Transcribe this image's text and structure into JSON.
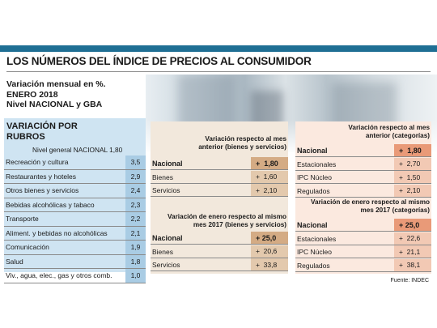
{
  "title": "LOS NÚMEROS DEL ÍNDICE DE PRECIOS AL CONSUMIDOR",
  "subtitle": [
    "Variación mensual en %.",
    "ENERO 2018",
    "Nivel NACIONAL y GBA"
  ],
  "source": "Fuente: INDEC",
  "colors": {
    "accent_bar": "#1f6f94",
    "left_panel": "#cfe4f2",
    "left_values": "#a9cce4",
    "mid_values": "#e3c9ad",
    "right_values": "#f2c9b4"
  },
  "chart_data": [
    {
      "type": "table",
      "title": "VARIACIÓN POR RUBROS",
      "subtitle": "Nivel general NACIONAL 1,80",
      "rows": [
        {
          "label": "Recreación y cultura",
          "value": "3,5"
        },
        {
          "label": "Restaurantes y hoteles",
          "value": "2,9"
        },
        {
          "label": "Otros bienes y servicios",
          "value": "2,4"
        },
        {
          "label": "Bebidas alcohólicas y tabaco",
          "value": "2,3"
        },
        {
          "label": "Transporte",
          "value": "2,2"
        },
        {
          "label": "Aliment. y bebidas no alcohólicas",
          "value": "2,1"
        },
        {
          "label": "Comunicación",
          "value": "1,9"
        },
        {
          "label": "Salud",
          "value": "1,8"
        },
        {
          "label": "Viv., agua, elec., gas y otros comb.",
          "value": "1,0"
        }
      ]
    },
    {
      "type": "table",
      "title": "Variación respecto al mes anterior (bienes y servicios)",
      "rows": [
        {
          "label": "Nacional",
          "value": "+  1,80",
          "bold": true
        },
        {
          "label": "Bienes",
          "value": "+  1,60"
        },
        {
          "label": "Servicios",
          "value": "+  2,10"
        }
      ]
    },
    {
      "type": "table",
      "title": "Variación de enero respecto al mismo mes 2017 (bienes y servicios)",
      "rows": [
        {
          "label": "Nacional",
          "value": "+ 25,0",
          "bold": true
        },
        {
          "label": "Bienes",
          "value": "+  20,6"
        },
        {
          "label": "Servicios",
          "value": "+  33,8"
        }
      ]
    },
    {
      "type": "table",
      "title": "Variación respecto al mes anterior (categorías)",
      "rows": [
        {
          "label": "Nacional",
          "value": "+  1,80",
          "bold": true
        },
        {
          "label": "Estacionales",
          "value": "+  2,70"
        },
        {
          "label": "IPC Núcleo",
          "value": "+  1,50"
        },
        {
          "label": "Regulados",
          "value": "+  2,10"
        }
      ]
    },
    {
      "type": "table",
      "title": "Variación de enero respecto al mismo mes 2017 (categorías)",
      "rows": [
        {
          "label": "Nacional",
          "value": "+ 25,0",
          "bold": true
        },
        {
          "label": "Estacionales",
          "value": "+  22,6"
        },
        {
          "label": "IPC Núcleo",
          "value": "+  21,1"
        },
        {
          "label": "Regulados",
          "value": "+  38,1"
        }
      ]
    }
  ]
}
